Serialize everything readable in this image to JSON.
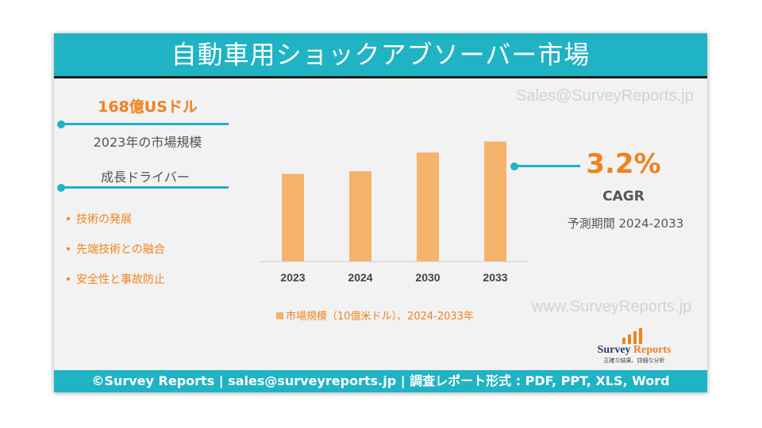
{
  "title": "自動車用ショックアブソーバー市場",
  "watermarks": {
    "email": "Sales@SurveyReports.jp",
    "site": "www.SurveyReports.jp"
  },
  "market": {
    "value": "168億USドル",
    "caption": "2023年の市場規模"
  },
  "drivers": {
    "heading": "成長ドライバー",
    "bullet": "•",
    "items": [
      "技術の発展",
      "先端技術との融合",
      "安全性と事故防止"
    ]
  },
  "cagr": {
    "value": "3.2%",
    "label": "CAGR",
    "period": "予測期間 2024-2033"
  },
  "chart_data": {
    "type": "bar",
    "categories": [
      "2023",
      "2024",
      "2030",
      "2033"
    ],
    "values": [
      16.8,
      17.3,
      20.9,
      23.0
    ],
    "legend": "市場規模（10億米ドル）、2024-2033年",
    "legend_position": "bottom",
    "grid": false,
    "ylim": [
      0,
      24
    ],
    "bar_color": "#f5b26b"
  },
  "logo": {
    "name_1": "Survey",
    "name_2": "Reports",
    "tagline": "正確な結果、詳細な分析"
  },
  "footer": {
    "text": "©Survey Reports | sales@surveyreports.jp |  調査レポート形式 : PDF, PPT, XLS, Word"
  },
  "colors": {
    "accent": "#1fb3c4",
    "orange": "#f0821e",
    "bar": "#f5b26b"
  }
}
